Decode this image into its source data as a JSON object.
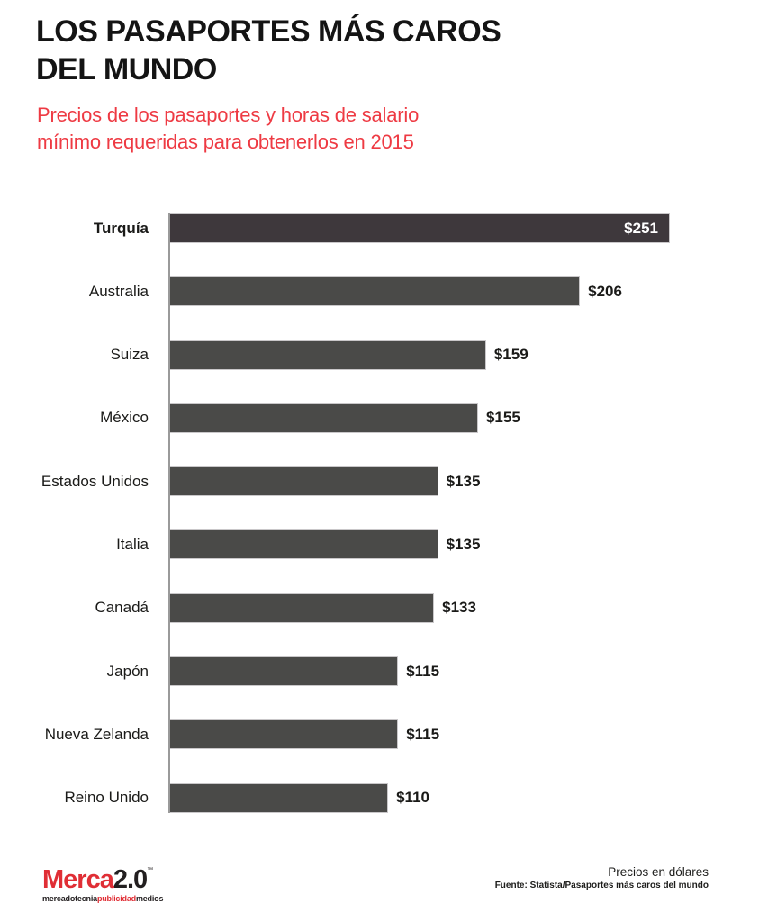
{
  "header": {
    "title_line1": "LOS PASAPORTES MÁS CAROS",
    "title_line2": "DEL MUNDO",
    "subtitle_line1": "Precios de los pasaportes y horas de salario",
    "subtitle_line2": "mínimo requeridas para obtenerlos en 2015"
  },
  "chart_data": {
    "type": "bar",
    "orientation": "horizontal",
    "title": "LOS PASAPORTES MÁS CAROS DEL MUNDO",
    "subtitle": "Precios de los pasaportes y horas de salario mínimo requeridas para obtenerlos en 2015",
    "categories": [
      "Turquía",
      "Australia",
      "Suiza",
      "México",
      "Estados Unidos",
      "Italia",
      "Canadá",
      "Japón",
      "Nueva Zelanda",
      "Reino Unido"
    ],
    "values": [
      251,
      206,
      159,
      155,
      135,
      135,
      133,
      115,
      115,
      110
    ],
    "value_labels": [
      "$251",
      "$206",
      "$159",
      "$155",
      "$135",
      "$135",
      "$133",
      "$115",
      "$115",
      "$110"
    ],
    "xlim": [
      0,
      251
    ],
    "unit_note": "Precios en dólares",
    "highlight_index": 0,
    "bar_color": "#4a4a48",
    "highlight_bar_color": "#3e383c",
    "axis_color": "#9a9a9a",
    "grid": false,
    "legend": false
  },
  "footer": {
    "brand": {
      "name_primary": "Merca",
      "name_secondary": "2.0",
      "trademark": "™",
      "tagline_part1": "mercadotecnia",
      "tagline_part2": "publicidad",
      "tagline_part3": "medios"
    },
    "note": "Precios en dólares",
    "source": "Fuente: Statista/Pasaportes más caros del mundo"
  },
  "colors": {
    "accent_red": "#ee3a43",
    "logo_red": "#e02e35",
    "text_black": "#1a1a18",
    "background": "#ffffff"
  }
}
